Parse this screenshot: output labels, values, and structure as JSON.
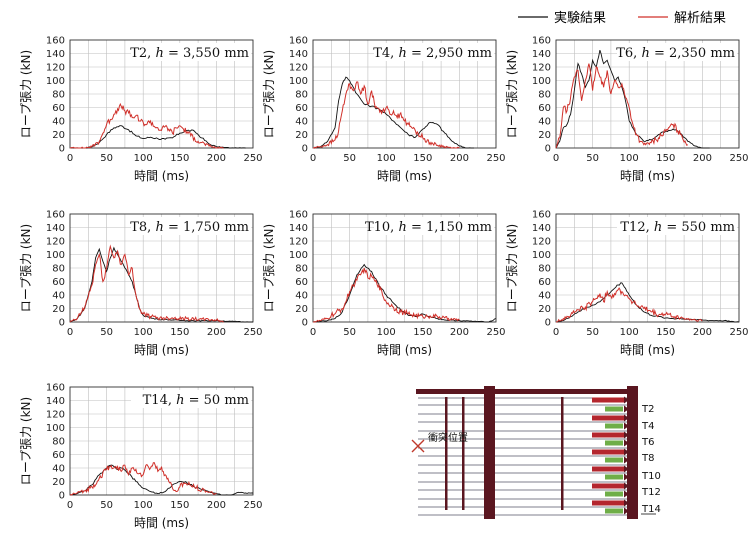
{
  "legend": {
    "experiment_label": "実験結果",
    "analysis_label": "解析結果"
  },
  "colors": {
    "experiment": "#111111",
    "analysis": "#d0302a",
    "grid": "#bfbfbf",
    "structure": "#5a1620",
    "anchor_red": "#b4262e",
    "anchor_green": "#6fae48"
  },
  "chart_data": [
    {
      "type": "line",
      "title": "T2, h = 3,550 mm",
      "title_prefix": "T2, ",
      "title_var": "h",
      "title_rest": " = 3,550 mm",
      "xlabel": "時間 (ms)",
      "ylabel": "ロープ張力 (kN)",
      "xlim": [
        0,
        250
      ],
      "ylim": [
        0,
        160
      ],
      "xticks": [
        0,
        50,
        100,
        150,
        200,
        250
      ],
      "yticks": [
        0,
        20,
        40,
        60,
        80,
        100,
        120,
        140,
        160
      ],
      "grid": true,
      "series": [
        {
          "name": "実験結果",
          "x": [
            0,
            20,
            30,
            40,
            50,
            60,
            70,
            80,
            90,
            100,
            110,
            120,
            130,
            140,
            150,
            160,
            170,
            180,
            190,
            200,
            210,
            220,
            230,
            240
          ],
          "y": [
            0,
            0,
            2,
            8,
            20,
            30,
            33,
            27,
            18,
            14,
            16,
            14,
            13,
            15,
            22,
            26,
            25,
            15,
            6,
            2,
            1,
            0,
            0,
            0
          ]
        },
        {
          "name": "解析結果",
          "x": [
            0,
            20,
            30,
            40,
            45,
            50,
            55,
            60,
            65,
            70,
            75,
            80,
            85,
            90,
            95,
            100,
            105,
            110,
            115,
            120,
            125,
            130,
            135,
            140,
            145,
            150,
            155,
            160,
            165,
            170,
            175,
            180,
            190,
            200,
            210
          ],
          "y": [
            0,
            0,
            2,
            10,
            22,
            35,
            42,
            50,
            58,
            62,
            55,
            52,
            45,
            48,
            40,
            38,
            35,
            40,
            32,
            30,
            26,
            32,
            28,
            22,
            30,
            33,
            28,
            24,
            18,
            15,
            10,
            8,
            3,
            0,
            0
          ]
        }
      ]
    },
    {
      "type": "line",
      "title": "T4, h = 2,950 mm",
      "title_prefix": "T4, ",
      "title_var": "h",
      "title_rest": " = 2,950 mm",
      "xlabel": "時間 (ms)",
      "ylabel": "ロープ張力 (kN)",
      "xlim": [
        0,
        250
      ],
      "ylim": [
        0,
        160
      ],
      "xticks": [
        0,
        50,
        100,
        150,
        200,
        250
      ],
      "yticks": [
        0,
        20,
        40,
        60,
        80,
        100,
        120,
        140,
        160
      ],
      "grid": true,
      "series": [
        {
          "name": "実験結果",
          "x": [
            0,
            10,
            20,
            30,
            35,
            40,
            45,
            50,
            55,
            60,
            70,
            80,
            90,
            100,
            110,
            120,
            130,
            140,
            150,
            160,
            170,
            180,
            190,
            200,
            210,
            220
          ],
          "y": [
            0,
            2,
            10,
            30,
            70,
            95,
            105,
            100,
            90,
            80,
            65,
            62,
            58,
            50,
            40,
            30,
            20,
            16,
            28,
            38,
            35,
            22,
            10,
            3,
            0,
            0
          ]
        },
        {
          "name": "解析結果",
          "x": [
            0,
            10,
            20,
            30,
            35,
            40,
            45,
            50,
            55,
            60,
            65,
            70,
            75,
            80,
            85,
            90,
            95,
            100,
            105,
            110,
            115,
            120,
            125,
            130,
            135,
            140,
            150,
            160,
            170,
            180,
            190,
            200
          ],
          "y": [
            0,
            2,
            5,
            12,
            25,
            55,
            80,
            95,
            85,
            98,
            80,
            92,
            65,
            85,
            60,
            58,
            55,
            60,
            50,
            55,
            45,
            52,
            40,
            35,
            30,
            25,
            15,
            8,
            4,
            2,
            0,
            0
          ]
        }
      ]
    },
    {
      "type": "line",
      "title": "T6, h = 2,350 mm",
      "title_prefix": "T6, ",
      "title_var": "h",
      "title_rest": " = 2,350 mm",
      "xlabel": "時間 (ms)",
      "ylabel": "ロープ張力 (kN)",
      "xlim": [
        0,
        250
      ],
      "ylim": [
        0,
        160
      ],
      "xticks": [
        0,
        50,
        100,
        150,
        200,
        250
      ],
      "yticks": [
        0,
        20,
        40,
        60,
        80,
        100,
        120,
        140,
        160
      ],
      "grid": true,
      "series": [
        {
          "name": "実験結果",
          "x": [
            0,
            5,
            10,
            15,
            20,
            25,
            30,
            35,
            40,
            45,
            50,
            55,
            60,
            65,
            70,
            75,
            80,
            85,
            90,
            95,
            100,
            110,
            120,
            130,
            140,
            150,
            160,
            170,
            180,
            190,
            200,
            210
          ],
          "y": [
            0,
            10,
            30,
            35,
            50,
            85,
            125,
            110,
            90,
            100,
            130,
            120,
            145,
            125,
            130,
            115,
            100,
            105,
            90,
            70,
            40,
            20,
            10,
            12,
            20,
            25,
            28,
            22,
            10,
            3,
            0,
            0
          ]
        },
        {
          "name": "解析結果",
          "x": [
            0,
            5,
            10,
            15,
            20,
            25,
            30,
            35,
            40,
            45,
            50,
            55,
            60,
            65,
            70,
            75,
            80,
            85,
            90,
            95,
            100,
            105,
            110,
            115,
            120,
            130,
            140,
            150,
            160,
            170,
            180
          ],
          "y": [
            0,
            15,
            60,
            55,
            75,
            105,
            115,
            70,
            100,
            125,
            85,
            120,
            105,
            90,
            115,
            80,
            100,
            90,
            95,
            75,
            60,
            35,
            20,
            10,
            5,
            8,
            15,
            25,
            35,
            20,
            5
          ]
        }
      ]
    },
    {
      "type": "line",
      "title": "T8, h = 1,750 mm",
      "title_prefix": "T8, ",
      "title_var": "h",
      "title_rest": " = 1,750 mm",
      "xlabel": "時間 (ms)",
      "ylabel": "ロープ張力 (kN)",
      "xlim": [
        0,
        250
      ],
      "ylim": [
        0,
        160
      ],
      "xticks": [
        0,
        50,
        100,
        150,
        200,
        250
      ],
      "yticks": [
        0,
        20,
        40,
        60,
        80,
        100,
        120,
        140,
        160
      ],
      "grid": true,
      "series": [
        {
          "name": "実験結果",
          "x": [
            0,
            10,
            20,
            30,
            35,
            40,
            45,
            50,
            55,
            60,
            65,
            70,
            75,
            80,
            85,
            90,
            95,
            100,
            110,
            120,
            140,
            160,
            180,
            200,
            220,
            240,
            250
          ],
          "y": [
            0,
            5,
            20,
            60,
            95,
            108,
            90,
            75,
            95,
            110,
            100,
            90,
            80,
            70,
            60,
            40,
            20,
            10,
            6,
            4,
            3,
            2,
            2,
            2,
            1,
            0,
            0
          ]
        },
        {
          "name": "解析結果",
          "x": [
            0,
            10,
            20,
            30,
            35,
            40,
            45,
            50,
            55,
            60,
            65,
            70,
            75,
            80,
            85,
            90,
            95,
            100,
            110,
            120,
            140,
            160,
            180,
            200,
            210
          ],
          "y": [
            0,
            5,
            22,
            55,
            85,
            100,
            60,
            80,
            112,
            95,
            105,
            85,
            100,
            70,
            80,
            40,
            20,
            12,
            8,
            6,
            6,
            5,
            4,
            3,
            0
          ]
        }
      ]
    },
    {
      "type": "line",
      "title": "T10, h = 1,150 mm",
      "title_prefix": "T10, ",
      "title_var": "h",
      "title_rest": " = 1,150 mm",
      "xlabel": "時間 (ms)",
      "ylabel": "ロープ張力 (kN)",
      "xlim": [
        0,
        250
      ],
      "ylim": [
        0,
        160
      ],
      "xticks": [
        0,
        50,
        100,
        150,
        200,
        250
      ],
      "yticks": [
        0,
        20,
        40,
        60,
        80,
        100,
        120,
        140,
        160
      ],
      "grid": true,
      "series": [
        {
          "name": "実験結果",
          "x": [
            0,
            20,
            30,
            40,
            50,
            60,
            70,
            80,
            90,
            100,
            110,
            120,
            130,
            140,
            150,
            160,
            170,
            180,
            200,
            220,
            240,
            250
          ],
          "y": [
            0,
            2,
            5,
            15,
            40,
            70,
            85,
            75,
            55,
            40,
            28,
            18,
            10,
            8,
            12,
            8,
            5,
            3,
            2,
            1,
            0,
            5
          ]
        },
        {
          "name": "解析結果",
          "x": [
            0,
            10,
            20,
            25,
            30,
            40,
            45,
            50,
            55,
            60,
            65,
            70,
            75,
            80,
            85,
            90,
            95,
            100,
            110,
            120,
            130,
            140,
            150,
            160,
            170,
            180,
            190,
            200
          ],
          "y": [
            0,
            2,
            5,
            10,
            12,
            20,
            30,
            45,
            55,
            62,
            70,
            80,
            65,
            68,
            60,
            55,
            40,
            30,
            22,
            15,
            12,
            10,
            8,
            9,
            8,
            6,
            4,
            3
          ]
        }
      ]
    },
    {
      "type": "line",
      "title": "T12, h = 550 mm",
      "title_prefix": "T12, ",
      "title_var": "h",
      "title_rest": " = 550 mm",
      "xlabel": "時間 (ms)",
      "ylabel": "ロープ張力 (kN)",
      "xlim": [
        0,
        250
      ],
      "ylim": [
        0,
        160
      ],
      "xticks": [
        0,
        50,
        100,
        150,
        200,
        250
      ],
      "yticks": [
        0,
        20,
        40,
        60,
        80,
        100,
        120,
        140,
        160
      ],
      "grid": true,
      "series": [
        {
          "name": "実験結果",
          "x": [
            0,
            10,
            20,
            30,
            40,
            50,
            60,
            70,
            80,
            85,
            90,
            95,
            100,
            110,
            120,
            130,
            140,
            150,
            160,
            170,
            180,
            190,
            200,
            210,
            220,
            230,
            240,
            250
          ],
          "y": [
            0,
            2,
            8,
            15,
            20,
            25,
            30,
            40,
            50,
            55,
            58,
            50,
            40,
            25,
            15,
            10,
            8,
            6,
            5,
            5,
            4,
            4,
            3,
            2,
            2,
            2,
            1,
            0
          ]
        },
        {
          "name": "解析結果",
          "x": [
            0,
            10,
            20,
            30,
            40,
            50,
            55,
            60,
            65,
            70,
            75,
            80,
            85,
            90,
            95,
            100,
            105,
            110,
            120,
            130,
            140,
            150,
            160,
            170,
            180,
            190,
            200
          ],
          "y": [
            0,
            5,
            10,
            18,
            22,
            30,
            35,
            42,
            30,
            45,
            38,
            42,
            48,
            45,
            40,
            35,
            30,
            25,
            20,
            15,
            10,
            12,
            8,
            6,
            4,
            3,
            2
          ]
        }
      ]
    },
    {
      "type": "line",
      "title": "T14, h = 50 mm",
      "title_prefix": "T14, ",
      "title_var": "h",
      "title_rest": " = 50 mm",
      "xlabel": "時間 (ms)",
      "ylabel": "ロープ張力 (kN)",
      "xlim": [
        0,
        250
      ],
      "ylim": [
        0,
        160
      ],
      "xticks": [
        0,
        50,
        100,
        150,
        200,
        250
      ],
      "yticks": [
        0,
        20,
        40,
        60,
        80,
        100,
        120,
        140,
        160
      ],
      "grid": true,
      "series": [
        {
          "name": "実験結果",
          "x": [
            0,
            10,
            20,
            30,
            40,
            50,
            55,
            60,
            65,
            70,
            80,
            90,
            100,
            110,
            120,
            130,
            140,
            150,
            160,
            170,
            180,
            190,
            200,
            210,
            220,
            230,
            240,
            250
          ],
          "y": [
            0,
            2,
            6,
            15,
            30,
            40,
            44,
            42,
            38,
            40,
            32,
            20,
            10,
            5,
            2,
            5,
            15,
            20,
            18,
            12,
            8,
            5,
            2,
            0,
            0,
            4,
            3,
            3
          ]
        },
        {
          "name": "解析結果",
          "x": [
            0,
            10,
            20,
            30,
            40,
            50,
            55,
            60,
            65,
            70,
            75,
            80,
            85,
            90,
            95,
            100,
            105,
            110,
            115,
            120,
            125,
            130,
            135,
            140,
            145,
            150,
            155,
            160,
            170,
            180,
            190,
            200
          ],
          "y": [
            0,
            3,
            6,
            12,
            25,
            38,
            42,
            40,
            42,
            35,
            44,
            30,
            40,
            38,
            32,
            30,
            45,
            40,
            48,
            35,
            42,
            30,
            20,
            10,
            5,
            12,
            18,
            15,
            12,
            8,
            4,
            2
          ]
        }
      ]
    }
  ],
  "diagram": {
    "impact_label": "衝突位置",
    "tags": [
      "T2",
      "T4",
      "T6",
      "T8",
      "T10",
      "T12",
      "T14"
    ]
  }
}
